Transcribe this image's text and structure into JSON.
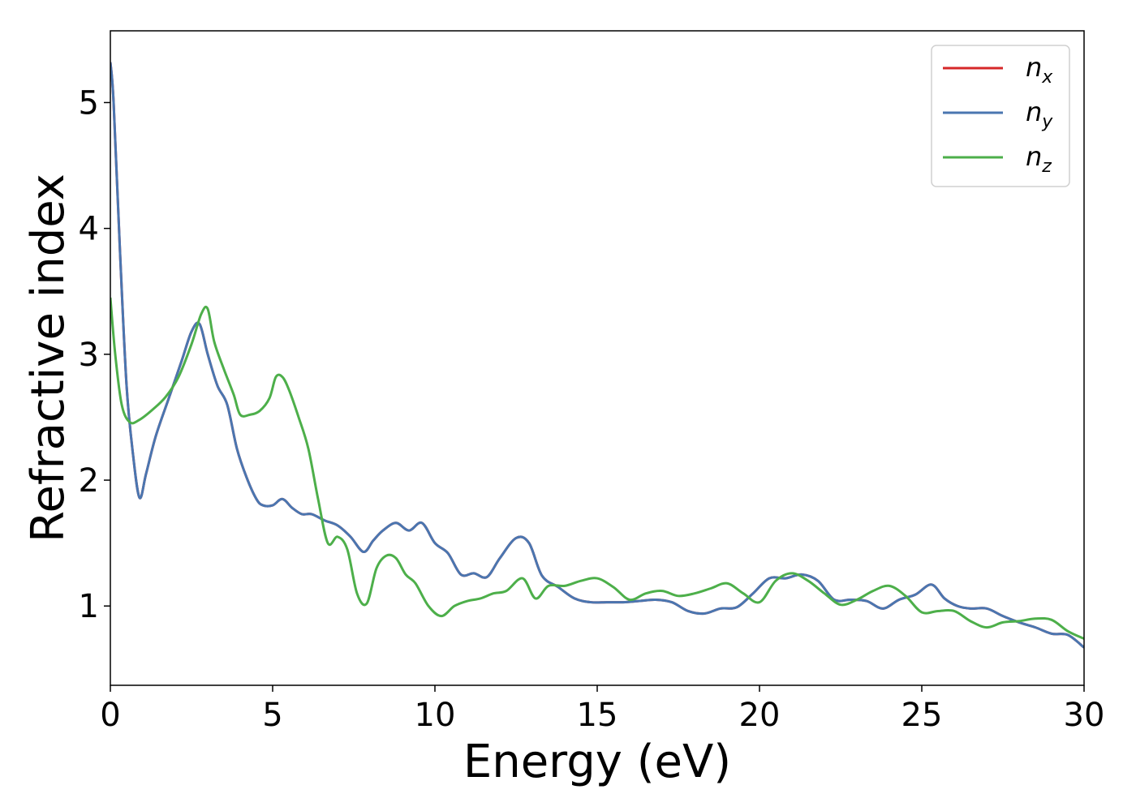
{
  "chart_data": {
    "type": "line",
    "xlabel": "Energy (eV)",
    "ylabel": "Refractive index",
    "xlim": [
      0,
      30
    ],
    "ylim": [
      0.37,
      5.57
    ],
    "xticks": [
      0,
      5,
      10,
      15,
      20,
      25,
      30
    ],
    "yticks": [
      1,
      2,
      3,
      4,
      5
    ],
    "grid": false,
    "legend_position": "top-right",
    "series": [
      {
        "name": "n_x",
        "label_base": "n",
        "label_sub": "x",
        "color": "#d62728",
        "x": [
          0,
          0.1,
          0.3,
          0.5,
          0.7,
          0.9,
          1.1,
          1.4,
          1.8,
          2.2,
          2.5,
          2.75,
          3.0,
          3.3,
          3.6,
          3.9,
          4.2,
          4.5,
          4.7,
          5.0,
          5.3,
          5.6,
          5.9,
          6.2,
          6.6,
          7.0,
          7.4,
          7.8,
          8.1,
          8.4,
          8.8,
          9.2,
          9.6,
          10.0,
          10.4,
          10.8,
          11.2,
          11.6,
          12.0,
          12.5,
          12.9,
          13.3,
          13.8,
          14.3,
          14.8,
          15.3,
          15.8,
          16.3,
          16.8,
          17.3,
          17.8,
          18.3,
          18.8,
          19.3,
          19.8,
          20.3,
          20.8,
          21.3,
          21.8,
          22.3,
          22.8,
          23.3,
          23.8,
          24.3,
          24.8,
          25.3,
          25.7,
          26.1,
          26.5,
          27.0,
          27.5,
          28.0,
          28.5,
          29.0,
          29.5,
          30.0
        ],
        "values": [
          5.32,
          5.0,
          3.8,
          2.75,
          2.2,
          1.86,
          2.05,
          2.35,
          2.65,
          2.95,
          3.18,
          3.24,
          3.0,
          2.75,
          2.6,
          2.25,
          2.02,
          1.85,
          1.8,
          1.8,
          1.85,
          1.78,
          1.73,
          1.73,
          1.68,
          1.64,
          1.55,
          1.43,
          1.52,
          1.6,
          1.66,
          1.6,
          1.66,
          1.5,
          1.42,
          1.25,
          1.26,
          1.23,
          1.38,
          1.54,
          1.5,
          1.24,
          1.15,
          1.06,
          1.03,
          1.03,
          1.03,
          1.04,
          1.05,
          1.03,
          0.96,
          0.94,
          0.98,
          0.99,
          1.1,
          1.22,
          1.22,
          1.25,
          1.2,
          1.05,
          1.05,
          1.04,
          0.98,
          1.05,
          1.09,
          1.17,
          1.06,
          1.0,
          0.98,
          0.98,
          0.92,
          0.87,
          0.83,
          0.78,
          0.77,
          0.67
        ]
      },
      {
        "name": "n_y",
        "label_base": "n",
        "label_sub": "y",
        "color": "#4a76b0",
        "x": [
          0,
          0.1,
          0.3,
          0.5,
          0.7,
          0.9,
          1.1,
          1.4,
          1.8,
          2.2,
          2.5,
          2.75,
          3.0,
          3.3,
          3.6,
          3.9,
          4.2,
          4.5,
          4.7,
          5.0,
          5.3,
          5.6,
          5.9,
          6.2,
          6.6,
          7.0,
          7.4,
          7.8,
          8.1,
          8.4,
          8.8,
          9.2,
          9.6,
          10.0,
          10.4,
          10.8,
          11.2,
          11.6,
          12.0,
          12.5,
          12.9,
          13.3,
          13.8,
          14.3,
          14.8,
          15.3,
          15.8,
          16.3,
          16.8,
          17.3,
          17.8,
          18.3,
          18.8,
          19.3,
          19.8,
          20.3,
          20.8,
          21.3,
          21.8,
          22.3,
          22.8,
          23.3,
          23.8,
          24.3,
          24.8,
          25.3,
          25.7,
          26.1,
          26.5,
          27.0,
          27.5,
          28.0,
          28.5,
          29.0,
          29.5,
          30.0
        ],
        "values": [
          5.32,
          5.0,
          3.8,
          2.75,
          2.2,
          1.86,
          2.05,
          2.35,
          2.65,
          2.95,
          3.18,
          3.24,
          3.0,
          2.75,
          2.6,
          2.25,
          2.02,
          1.85,
          1.8,
          1.8,
          1.85,
          1.78,
          1.73,
          1.73,
          1.68,
          1.64,
          1.55,
          1.43,
          1.52,
          1.6,
          1.66,
          1.6,
          1.66,
          1.5,
          1.42,
          1.25,
          1.26,
          1.23,
          1.38,
          1.54,
          1.5,
          1.24,
          1.15,
          1.06,
          1.03,
          1.03,
          1.03,
          1.04,
          1.05,
          1.03,
          0.96,
          0.94,
          0.98,
          0.99,
          1.1,
          1.22,
          1.22,
          1.25,
          1.2,
          1.05,
          1.05,
          1.04,
          0.98,
          1.05,
          1.09,
          1.17,
          1.06,
          1.0,
          0.98,
          0.98,
          0.92,
          0.87,
          0.83,
          0.78,
          0.77,
          0.67
        ]
      },
      {
        "name": "n_z",
        "label_base": "n",
        "label_sub": "z",
        "color": "#4daf4a",
        "x": [
          0,
          0.15,
          0.35,
          0.6,
          0.9,
          1.3,
          1.7,
          2.1,
          2.5,
          2.8,
          3.0,
          3.2,
          3.5,
          3.8,
          4.0,
          4.3,
          4.6,
          4.9,
          5.1,
          5.3,
          5.5,
          5.8,
          6.1,
          6.4,
          6.7,
          7.0,
          7.3,
          7.6,
          7.9,
          8.2,
          8.5,
          8.8,
          9.1,
          9.4,
          9.8,
          10.2,
          10.6,
          11.0,
          11.4,
          11.8,
          12.2,
          12.7,
          13.1,
          13.5,
          14.0,
          14.5,
          15.0,
          15.5,
          16.0,
          16.5,
          17.0,
          17.5,
          18.0,
          18.5,
          19.0,
          19.5,
          20.0,
          20.5,
          21.0,
          21.5,
          22.0,
          22.5,
          23.0,
          23.5,
          24.0,
          24.5,
          25.0,
          25.5,
          26.0,
          26.5,
          27.0,
          27.5,
          28.0,
          28.5,
          29.0,
          29.5,
          30.0
        ],
        "values": [
          3.45,
          3.0,
          2.6,
          2.46,
          2.48,
          2.56,
          2.66,
          2.82,
          3.08,
          3.32,
          3.36,
          3.1,
          2.88,
          2.68,
          2.52,
          2.52,
          2.55,
          2.65,
          2.82,
          2.82,
          2.72,
          2.5,
          2.25,
          1.85,
          1.5,
          1.55,
          1.45,
          1.1,
          1.02,
          1.3,
          1.4,
          1.38,
          1.25,
          1.18,
          1.0,
          0.92,
          1.0,
          1.04,
          1.06,
          1.1,
          1.12,
          1.22,
          1.06,
          1.16,
          1.16,
          1.2,
          1.22,
          1.15,
          1.05,
          1.1,
          1.12,
          1.08,
          1.1,
          1.14,
          1.18,
          1.1,
          1.03,
          1.2,
          1.26,
          1.2,
          1.1,
          1.01,
          1.05,
          1.12,
          1.16,
          1.08,
          0.95,
          0.96,
          0.96,
          0.88,
          0.83,
          0.87,
          0.88,
          0.9,
          0.89,
          0.8,
          0.74
        ]
      }
    ]
  }
}
